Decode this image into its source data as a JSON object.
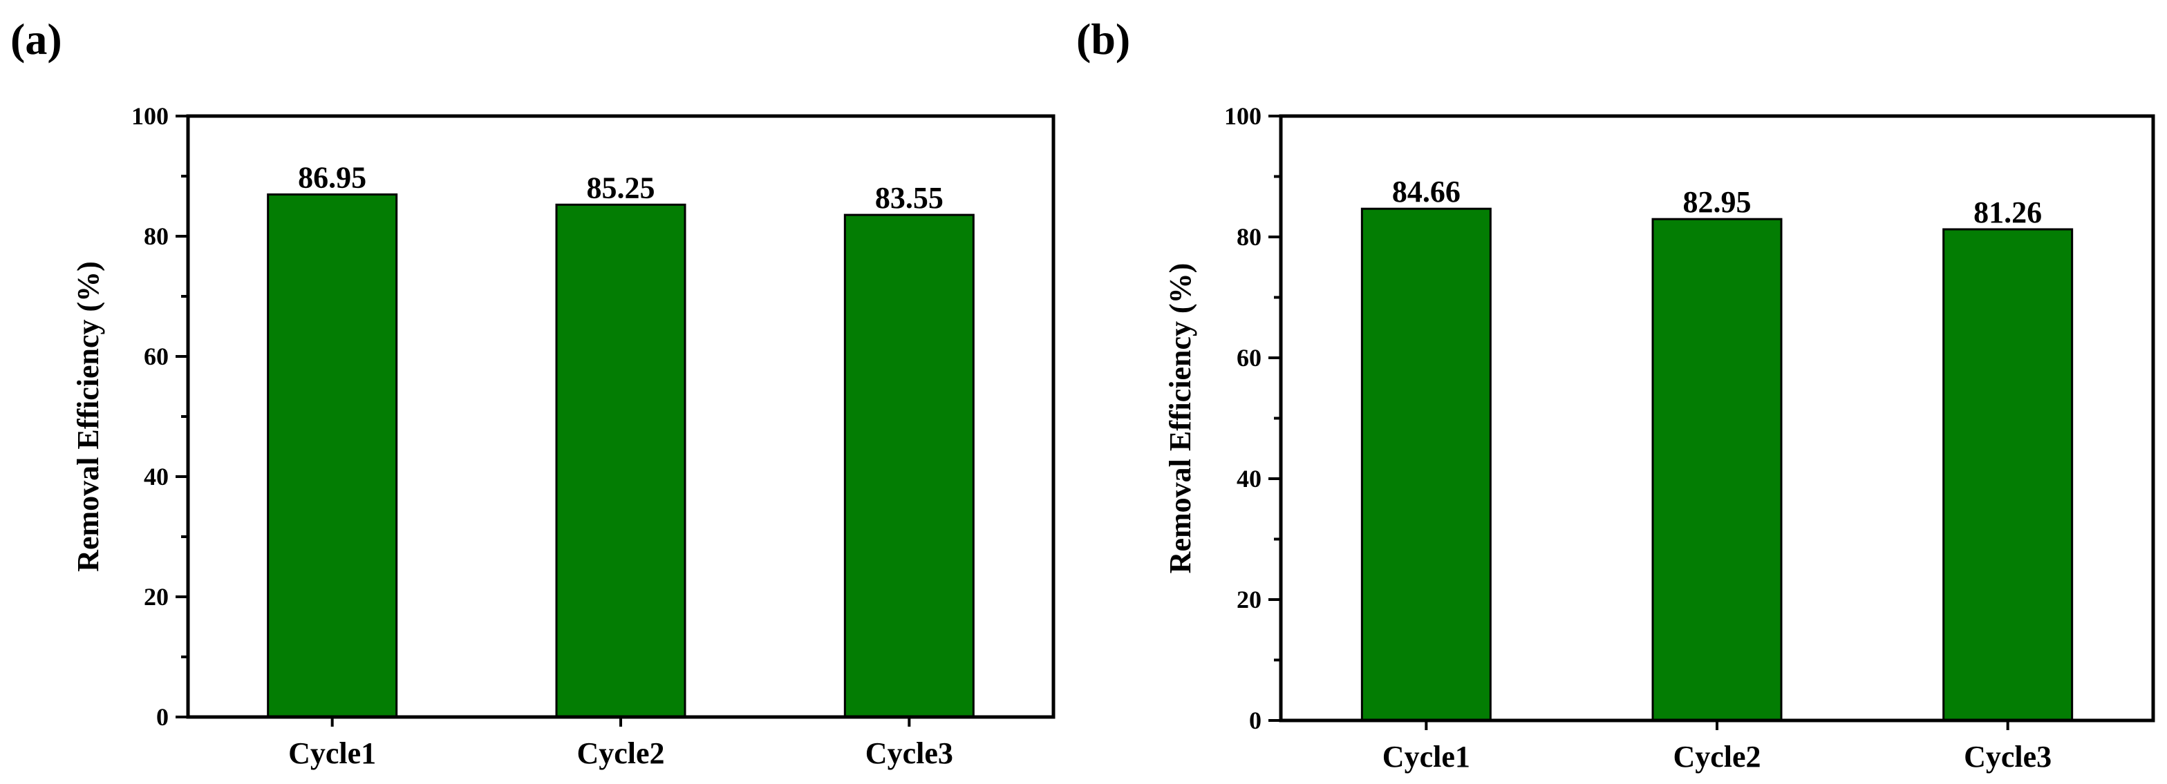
{
  "bar_color": "#037d03",
  "axis_color": "#000000",
  "chart_data": [
    {
      "type": "bar",
      "panel_label": "(a)",
      "title": "",
      "xlabel": "",
      "ylabel": "Removal Efficiency (%)",
      "categories": [
        "Cycle1",
        "Cycle2",
        "Cycle3"
      ],
      "values": [
        86.95,
        85.25,
        83.55
      ],
      "value_labels": [
        "86.95",
        "85.25",
        "83.55"
      ],
      "ylim": [
        0,
        100
      ],
      "yticks": [
        0,
        20,
        40,
        60,
        80,
        100
      ],
      "ytick_labels": [
        "0",
        "20",
        "40",
        "60",
        "80",
        "100"
      ],
      "grid": false,
      "legend": "none"
    },
    {
      "type": "bar",
      "panel_label": "(b)",
      "title": "",
      "xlabel": "",
      "ylabel": "Removal Efficiency (%)",
      "categories": [
        "Cycle1",
        "Cycle2",
        "Cycle3"
      ],
      "values": [
        84.66,
        82.95,
        81.26
      ],
      "value_labels": [
        "84.66",
        "82.95",
        "81.26"
      ],
      "ylim": [
        0,
        100
      ],
      "yticks": [
        0,
        20,
        40,
        60,
        80,
        100
      ],
      "ytick_labels": [
        "0",
        "20",
        "40",
        "60",
        "80",
        "100"
      ],
      "grid": false,
      "legend": "none"
    }
  ]
}
